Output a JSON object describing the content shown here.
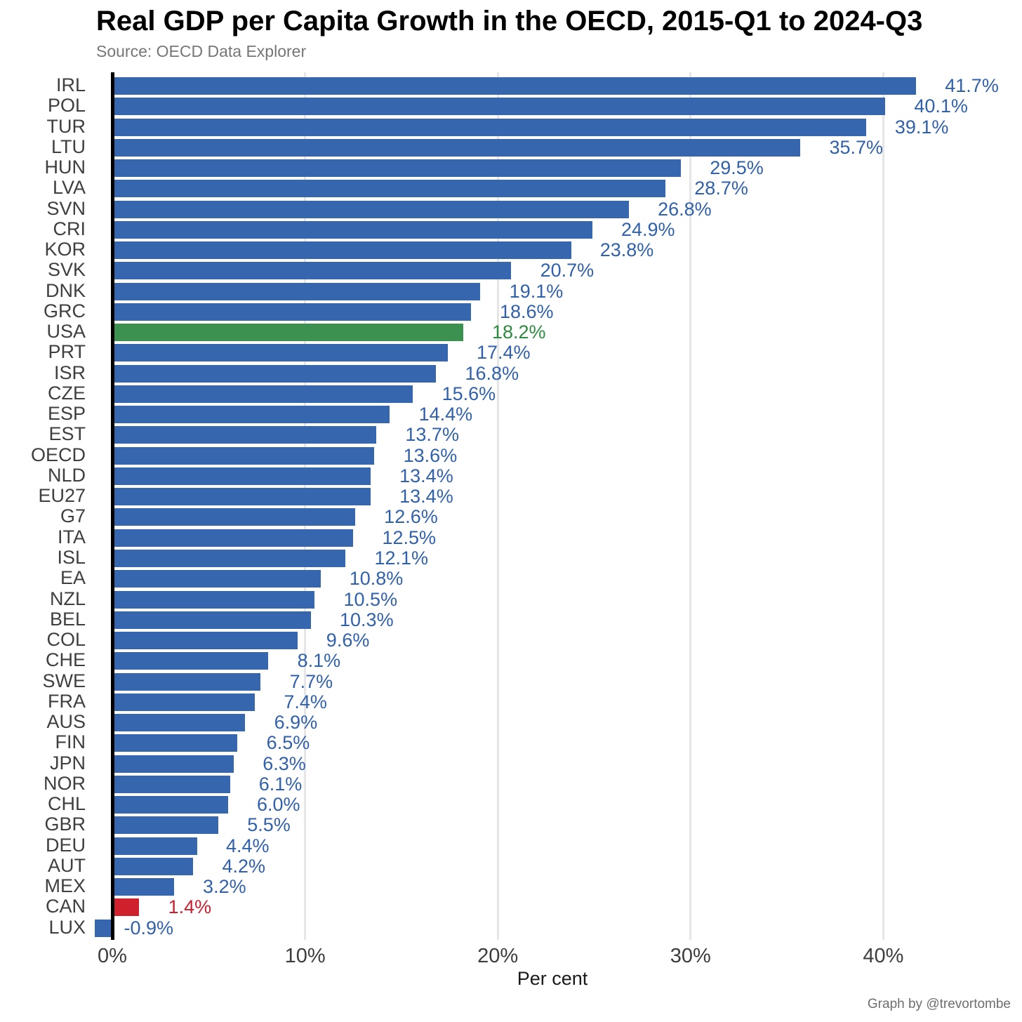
{
  "title": "Real GDP per Capita Growth in the OECD, 2015-Q1 to 2024-Q3",
  "subtitle": "Source: OECD Data Explorer",
  "xlabel": "Per cent",
  "credit": "Graph by @trevortombe",
  "colors": {
    "bar_default": "#3566ae",
    "bar_usa": "#3d9150",
    "bar_can": "#cf202e",
    "label_default": "#3161ab",
    "label_usa": "#2e8b3f",
    "label_can": "#c7202e",
    "zero_line": "#000000",
    "gridline": "#e6e6e6"
  },
  "chart_data": {
    "type": "bar",
    "orientation": "horizontal",
    "title": "Real GDP per Capita Growth in the OECD, 2015-Q1 to 2024-Q3",
    "subtitle": "Source: OECD Data Explorer",
    "xlabel": "Per cent",
    "xlim": [
      -2,
      46
    ],
    "grid": "vertical-major",
    "x_ticks": [
      {
        "label": "0%",
        "value": 0
      },
      {
        "label": "10%",
        "value": 10
      },
      {
        "label": "20%",
        "value": 20
      },
      {
        "label": "30%",
        "value": 30
      },
      {
        "label": "40%",
        "value": 40
      }
    ],
    "categories": [
      "IRL",
      "POL",
      "TUR",
      "LTU",
      "HUN",
      "LVA",
      "SVN",
      "CRI",
      "KOR",
      "SVK",
      "DNK",
      "GRC",
      "USA",
      "PRT",
      "ISR",
      "CZE",
      "ESP",
      "EST",
      "OECD",
      "NLD",
      "EU27",
      "G7",
      "ITA",
      "ISL",
      "EA",
      "NZL",
      "BEL",
      "COL",
      "CHE",
      "SWE",
      "FRA",
      "AUS",
      "FIN",
      "JPN",
      "NOR",
      "CHL",
      "GBR",
      "DEU",
      "AUT",
      "MEX",
      "CAN",
      "LUX"
    ],
    "values": [
      41.7,
      40.1,
      39.1,
      35.7,
      29.5,
      28.7,
      26.8,
      24.9,
      23.8,
      20.7,
      19.1,
      18.6,
      18.2,
      17.4,
      16.8,
      15.6,
      14.4,
      13.7,
      13.6,
      13.4,
      13.4,
      12.6,
      12.5,
      12.1,
      10.8,
      10.5,
      10.3,
      9.6,
      8.1,
      7.7,
      7.4,
      6.9,
      6.5,
      6.3,
      6.1,
      6.0,
      5.5,
      4.4,
      4.2,
      3.2,
      1.4,
      -0.9
    ],
    "value_labels": [
      "41.7%",
      "40.1%",
      "39.1%",
      "35.7%",
      "29.5%",
      "28.7%",
      "26.8%",
      "24.9%",
      "23.8%",
      "20.7%",
      "19.1%",
      "18.6%",
      "18.2%",
      "17.4%",
      "16.8%",
      "15.6%",
      "14.4%",
      "13.7%",
      "13.6%",
      "13.4%",
      "13.4%",
      "12.6%",
      "12.5%",
      "12.1%",
      "10.8%",
      "10.5%",
      "10.3%",
      "9.6%",
      "8.1%",
      "7.7%",
      "7.4%",
      "6.9%",
      "6.5%",
      "6.3%",
      "6.1%",
      "6.0%",
      "5.5%",
      "4.4%",
      "4.2%",
      "3.2%",
      "1.4%",
      "-0.9%"
    ],
    "highlighted_bars": {
      "USA": "green",
      "CAN": "red"
    },
    "legend": "none"
  }
}
